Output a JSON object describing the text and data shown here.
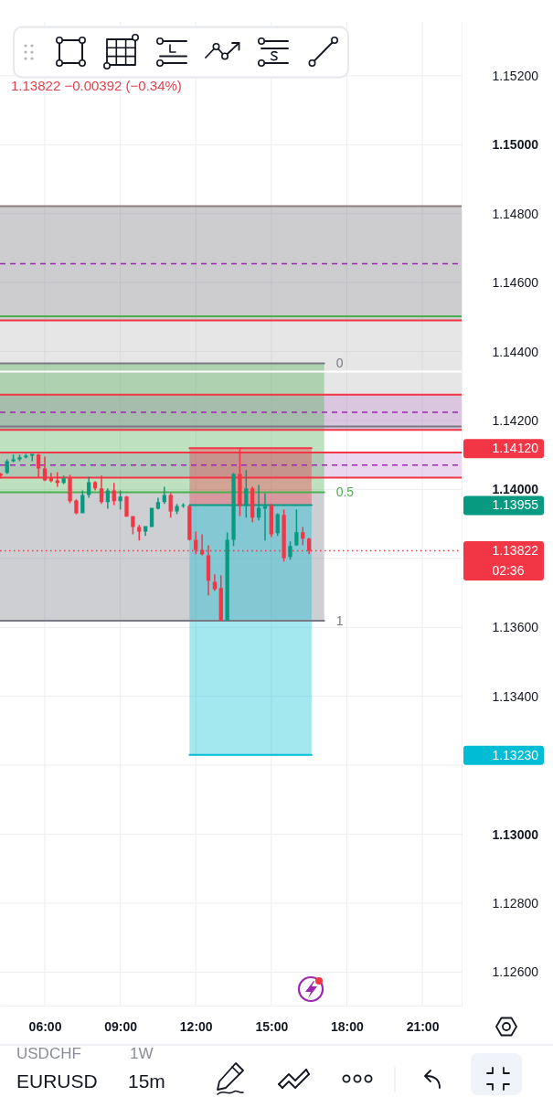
{
  "chart_data": {
    "type": "candlestick",
    "title": "EURUSD",
    "subtitle": "1.13822 −0.00392 (−0.34%)",
    "x": [
      4.25,
      4.5,
      4.75,
      5,
      5.25,
      5.5,
      5.75,
      6,
      6.25,
      6.5,
      6.75,
      7,
      7.25,
      7.5,
      7.75,
      8,
      8.25,
      8.5,
      8.75,
      9,
      9.25,
      9.5,
      9.75,
      10,
      10.25,
      10.5,
      10.75,
      11,
      11.25,
      11.5,
      11.75,
      12,
      12.25,
      12.5,
      12.75,
      13,
      13.25,
      13.5,
      13.75,
      14,
      14.25,
      14.5,
      14.75,
      15,
      15.25,
      15.5,
      15.75,
      16,
      16.25,
      16.5
    ],
    "ohlc": [
      [
        1.14045,
        1.14048,
        1.14032,
        1.1404
      ],
      [
        1.14048,
        1.14087,
        1.14045,
        1.14082
      ],
      [
        1.14082,
        1.14101,
        1.14079,
        1.14087
      ],
      [
        1.14087,
        1.14101,
        1.14082,
        1.14093
      ],
      [
        1.14093,
        1.14103,
        1.1409,
        1.14098
      ],
      [
        1.14098,
        1.14103,
        1.14082,
        1.14103
      ],
      [
        1.14101,
        1.14103,
        1.14034,
        1.14061
      ],
      [
        1.14061,
        1.14095,
        1.14024,
        1.14026
      ],
      [
        1.14032,
        1.14048,
        1.14021,
        1.14024
      ],
      [
        1.14026,
        1.1405,
        1.14008,
        1.14019
      ],
      [
        1.14019,
        1.1404,
        1.14016,
        1.14032
      ],
      [
        1.14032,
        1.14042,
        1.1396,
        1.13966
      ],
      [
        1.13968,
        1.13971,
        1.13928,
        1.13931
      ],
      [
        1.13931,
        1.13997,
        1.13931,
        1.13984
      ],
      [
        1.13984,
        1.14037,
        1.13976,
        1.14021
      ],
      [
        1.14021,
        1.14024,
        1.13997,
        1.14003
      ],
      [
        1.14003,
        1.1404,
        1.13958,
        1.13963
      ],
      [
        1.13963,
        1.14003,
        1.13944,
        1.13997
      ],
      [
        1.13997,
        1.14019,
        1.13955,
        1.13966
      ],
      [
        1.13966,
        1.13997,
        1.13942,
        1.13979
      ],
      [
        1.13979,
        1.13981,
        1.13921,
        1.13921
      ],
      [
        1.13923,
        1.13923,
        1.1387,
        1.13891
      ],
      [
        1.13891,
        1.13897,
        1.13852,
        1.13878
      ],
      [
        1.13878,
        1.13894,
        1.13865,
        1.13894
      ],
      [
        1.13891,
        1.13947,
        1.13891,
        1.13947
      ],
      [
        1.13944,
        1.13976,
        1.13942,
        1.13963
      ],
      [
        1.13963,
        1.14008,
        1.13958,
        1.13984
      ],
      [
        1.13984,
        1.13989,
        1.13918,
        1.13936
      ],
      [
        1.13936,
        1.13958,
        1.13928,
        1.13952
      ],
      [
        1.13952,
        1.1396,
        1.13947,
        1.13955
      ],
      [
        1.13952,
        1.13955,
        1.13852,
        1.13854
      ],
      [
        1.13854,
        1.13878,
        1.13812,
        1.13825
      ],
      [
        1.13825,
        1.1387,
        1.13809,
        1.13812
      ],
      [
        1.13809,
        1.13838,
        1.13693,
        1.13735
      ],
      [
        1.13732,
        1.13754,
        1.13706,
        1.13711
      ],
      [
        1.13714,
        1.13751,
        1.13619,
        1.13619
      ],
      [
        1.13619,
        1.13875,
        1.13619,
        1.13854
      ],
      [
        1.13854,
        1.14048,
        1.13836,
        1.14045
      ],
      [
        1.14045,
        1.14117,
        1.13923,
        1.13952
      ],
      [
        1.13952,
        1.14056,
        1.13918,
        1.14003
      ],
      [
        1.14003,
        1.14008,
        1.13905,
        1.13918
      ],
      [
        1.13918,
        1.14013,
        1.1391,
        1.13947
      ],
      [
        1.13944,
        1.13989,
        1.13852,
        1.13952
      ],
      [
        1.13955,
        1.13958,
        1.13862,
        1.1387
      ],
      [
        1.13873,
        1.13931,
        1.13865,
        1.13928
      ],
      [
        1.13926,
        1.13942,
        1.13791,
        1.13801
      ],
      [
        1.13804,
        1.13849,
        1.13796,
        1.13836
      ],
      [
        1.13838,
        1.13942,
        1.13836,
        1.13876
      ],
      [
        1.13876,
        1.13891,
        1.13838,
        1.13857
      ],
      [
        1.13857,
        1.1386,
        1.13812,
        1.13822
      ]
    ],
    "colors": [
      "#f23645",
      "#089981",
      "#089981",
      "#089981",
      "#089981",
      "#089981",
      "#f23645",
      "#f23645",
      "#f23645",
      "#f23645",
      "#089981",
      "#f23645",
      "#f23645",
      "#089981",
      "#089981",
      "#f23645",
      "#f23645",
      "#089981",
      "#f23645",
      "#089981",
      "#f23645",
      "#f23645",
      "#f23645",
      "#089981",
      "#089981",
      "#089981",
      "#089981",
      "#f23645",
      "#089981",
      "#089981",
      "#f23645",
      "#f23645",
      "#f23645",
      "#f23645",
      "#f23645",
      "#f23645",
      "#089981",
      "#089981",
      "#f23645",
      "#089981",
      "#f23645",
      "#089981",
      "#089981",
      "#f23645",
      "#089981",
      "#f23645",
      "#089981",
      "#089981",
      "#f23645",
      "#f23645"
    ],
    "series": [
      {
        "type": "line",
        "color": "#787b86",
        "x": [
          4.22,
          17.1
        ],
        "values": [
          1.14366,
          1.14366
        ]
      },
      {
        "type": "line",
        "color": "#4caf50",
        "x": [
          4.22,
          17.1
        ],
        "values": [
          1.13992,
          1.13992
        ],
        "lower": [
          1.13992,
          1.13992
        ],
        "upper": [
          1.14366,
          1.14366
        ]
      },
      {
        "type": "line",
        "color": "#787b86",
        "x": [
          4.22,
          17.1
        ],
        "values": [
          1.13619,
          1.13619
        ],
        "lower": [
          1.13619,
          1.13619
        ],
        "upper": [
          1.13992,
          1.13992
        ]
      },
      {
        "type": "line",
        "color": "#f23645",
        "x": [
          11.75,
          16.6
        ],
        "values": [
          1.1412,
          1.1412
        ],
        "lower": [
          1.13955,
          1.13955
        ],
        "upper": [
          1.1412,
          1.1412
        ]
      },
      {
        "type": "line",
        "color": "#00bcd4",
        "x": [
          11.75,
          16.6
        ],
        "values": [
          1.1323,
          1.1323
        ],
        "lower": [
          1.1323,
          1.1323
        ],
        "upper": [
          1.13955,
          1.13955
        ]
      },
      {
        "type": "line",
        "color": "#089981",
        "x": [
          11.75,
          16.6
        ],
        "values": [
          1.13955,
          1.13955
        ]
      }
    ],
    "xlim": [
      4.22,
      22.56
    ],
    "xticks": [
      {
        "value": 6,
        "label": "06:00"
      },
      {
        "value": 9,
        "label": "09:00"
      },
      {
        "value": 12,
        "label": "12:00"
      },
      {
        "value": 15,
        "label": "15:00"
      },
      {
        "value": 18,
        "label": "18:00"
      },
      {
        "value": 21,
        "label": "21:00"
      }
    ],
    "ylim": [
      1.12503,
      1.15356
    ],
    "yticks": [
      {
        "value": 1.126,
        "label": "1.12600"
      },
      {
        "value": 1.128,
        "label": "1.12800"
      },
      {
        "value": 1.13,
        "label": "1.13000"
      },
      {
        "value": 1.132,
        "label": null
      },
      {
        "value": 1.1323,
        "label": "1.13230"
      },
      {
        "value": 1.134,
        "label": "1.13400"
      },
      {
        "value": 1.136,
        "label": "1.13600"
      },
      {
        "value": 1.138,
        "label": null
      },
      {
        "value": 1.13955,
        "label": "1.13955"
      },
      {
        "value": 1.14,
        "label": "1.14000"
      },
      {
        "value": 1.1412,
        "label": "1.14120"
      },
      {
        "value": 1.142,
        "label": "1.14200"
      },
      {
        "value": 1.144,
        "label": "1.14400"
      },
      {
        "value": 1.146,
        "label": "1.14600"
      },
      {
        "value": 1.148,
        "label": "1.14800"
      },
      {
        "value": 1.15,
        "label": "1.15000"
      },
      {
        "value": 1.152,
        "label": "1.15200"
      }
    ],
    "grid": true,
    "bands": [
      {
        "axis": "y",
        "from": 1.1449,
        "to": 1.14822,
        "color": "#6f7177"
      },
      {
        "axis": "y",
        "from": 1.14173,
        "to": 1.1449,
        "color": "#b8b8b8"
      },
      {
        "axis": "y",
        "from": 1.14173,
        "to": 1.14275,
        "color": "#c38ad0"
      },
      {
        "axis": "y",
        "from": 1.14034,
        "to": 1.14107,
        "color": "#c38ad0"
      }
    ],
    "ref_lines": [
      {
        "axis": "y",
        "value": 1.14822,
        "color": "#8d7f80",
        "line_style": "solid"
      },
      {
        "axis": "y",
        "value": 1.14655,
        "color": "#9c27b0",
        "line_style": "dashed"
      },
      {
        "axis": "y",
        "value": 1.14502,
        "color": "#4caf50",
        "line_style": "solid"
      },
      {
        "axis": "y",
        "value": 1.1449,
        "color": "#f23645",
        "line_style": "solid"
      },
      {
        "axis": "y",
        "value": 1.14342,
        "color": "#ffffff",
        "line_style": "solid"
      },
      {
        "axis": "y",
        "value": 1.14275,
        "color": "#f23645",
        "line_style": "solid"
      },
      {
        "axis": "y",
        "value": 1.14224,
        "color": "#9c27b0",
        "line_style": "dashed"
      },
      {
        "axis": "y",
        "value": 1.14183,
        "color": "#787b86",
        "line_style": "solid"
      },
      {
        "axis": "y",
        "value": 1.14173,
        "color": "#f23645",
        "line_style": "solid"
      },
      {
        "axis": "y",
        "value": 1.14107,
        "color": "#f23645",
        "line_style": "solid"
      },
      {
        "axis": "y",
        "value": 1.14071,
        "color": "#9c27b0",
        "line_style": "dashed"
      },
      {
        "axis": "y",
        "value": 1.14034,
        "color": "#f23645",
        "line_style": "solid"
      },
      {
        "axis": "y",
        "value": 1.13822,
        "color": "#f23645",
        "line_style": "dotted",
        "label": "1.13822"
      }
    ],
    "annotations": [
      "0",
      "0.5",
      "1",
      "02:36",
      "USDCHF",
      "1W",
      "15m"
    ]
  }
}
